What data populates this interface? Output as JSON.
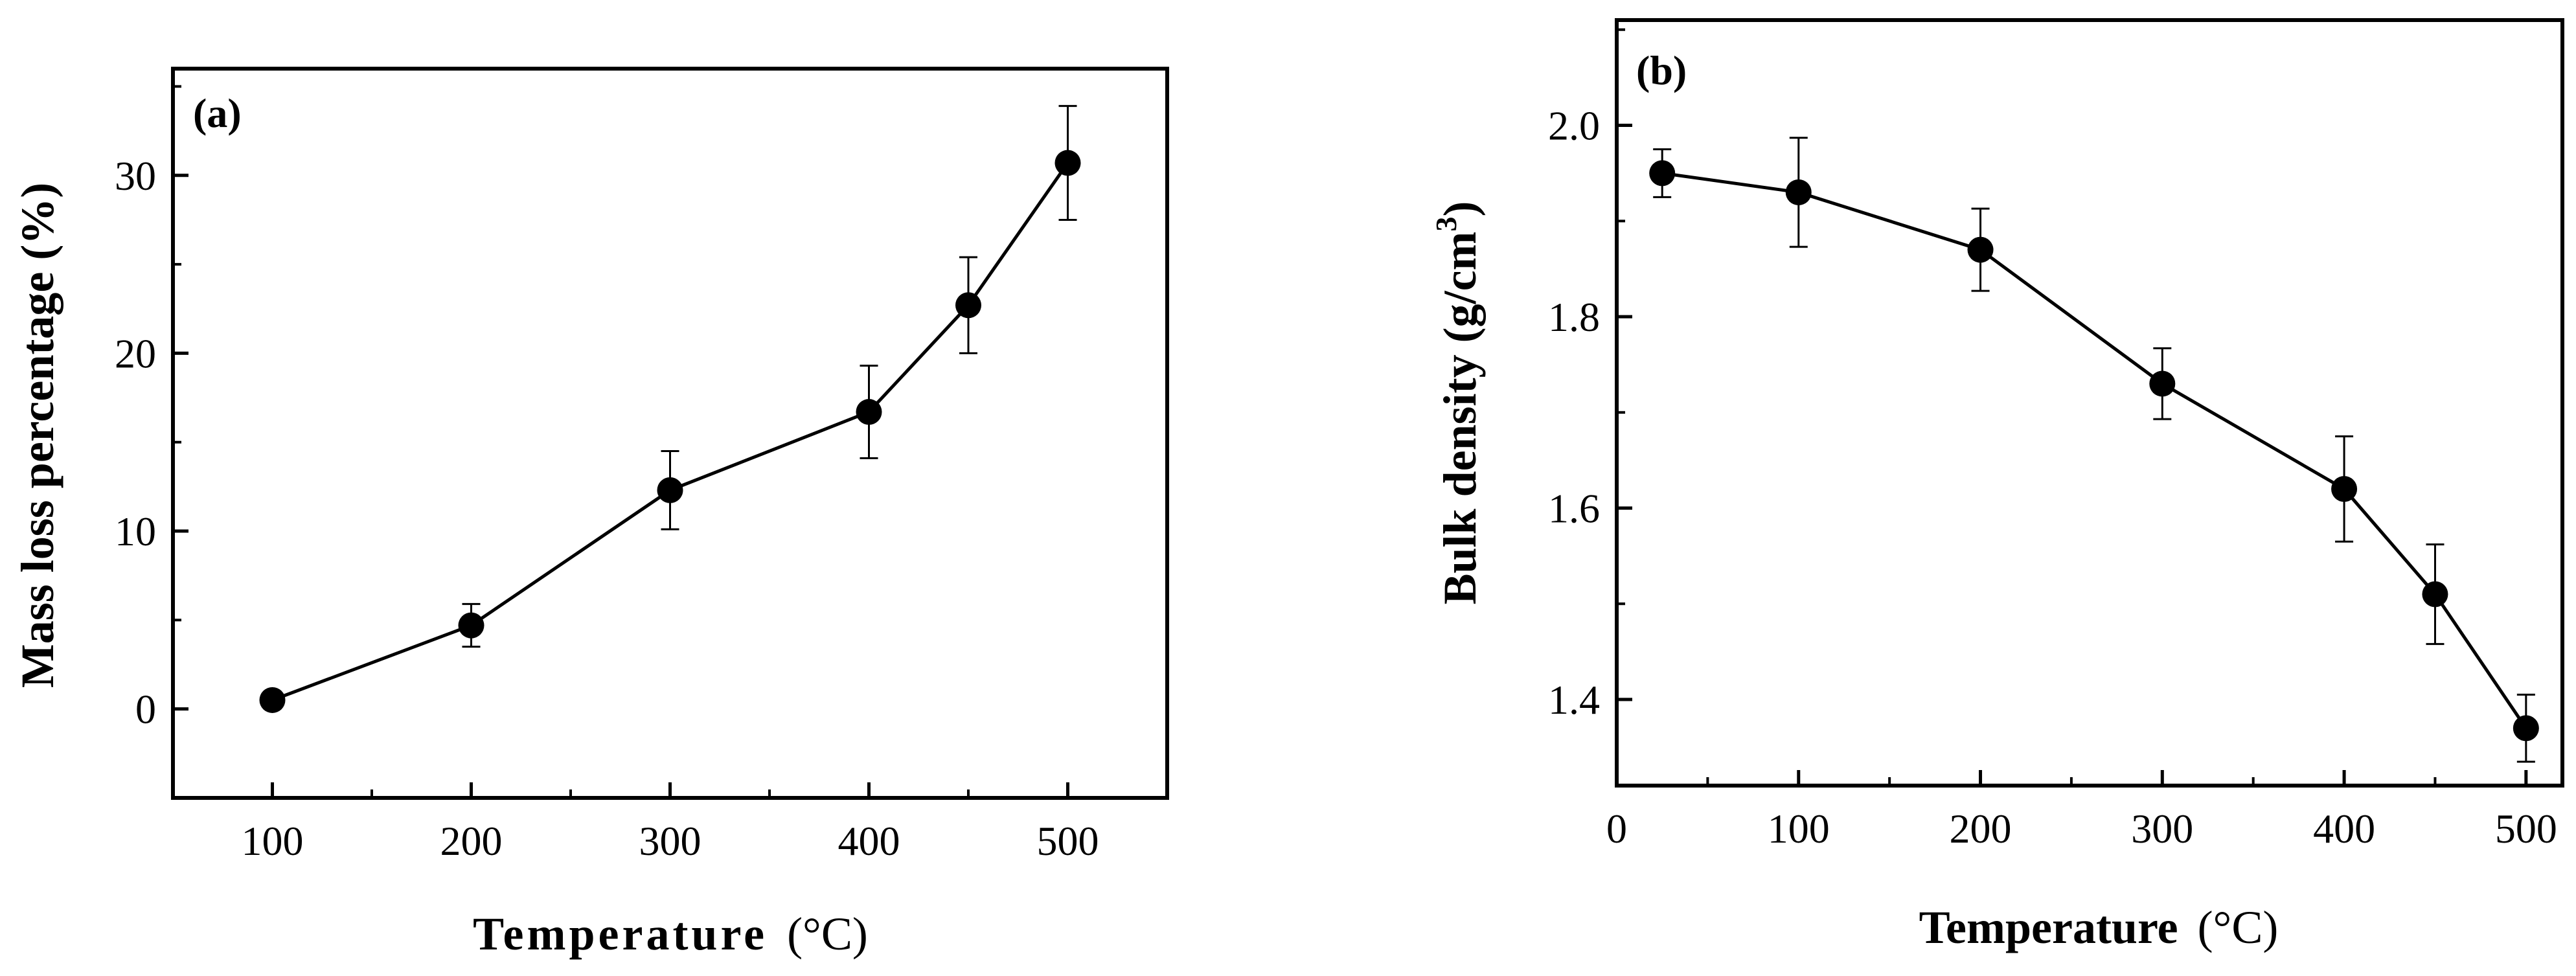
{
  "chart_data": [
    {
      "type": "line",
      "panel_label": "(a)",
      "xlabel": "Temperature",
      "xunit": "(°C)",
      "ylabel": "Mass loss percentage (%)",
      "xlim": [
        50,
        550
      ],
      "ylim": [
        -5,
        36
      ],
      "xticks": [
        100,
        200,
        300,
        400,
        500
      ],
      "xtick_labels": [
        "100",
        "200",
        "300",
        "400",
        "500"
      ],
      "yticks": [
        0,
        10,
        20,
        30
      ],
      "ytick_labels": [
        "0",
        "10",
        "20",
        "30"
      ],
      "grid": false,
      "legend": "none",
      "series": [
        {
          "name": "Mass loss percentage",
          "x": [
            100,
            200,
            300,
            400,
            450,
            500
          ],
          "y": [
            0.5,
            4.7,
            12.3,
            16.7,
            22.7,
            30.7
          ],
          "err": [
            0.4,
            1.2,
            2.2,
            2.6,
            2.7,
            3.2
          ]
        }
      ]
    },
    {
      "type": "line",
      "panel_label": "(b)",
      "xlabel": "Temperature",
      "xunit": "(°C)",
      "ylabel": "Bulk density (g/cm",
      "ylabel_superscript": "3",
      "ylabel_suffix": ")",
      "xlim": [
        0,
        520
      ],
      "ylim": [
        1.31,
        2.11
      ],
      "xticks": [
        0,
        100,
        200,
        300,
        400,
        500
      ],
      "xtick_labels": [
        "0",
        "100",
        "200",
        "300",
        "400",
        "500"
      ],
      "yticks": [
        1.4,
        1.6,
        1.8,
        2.0
      ],
      "ytick_labels": [
        "1.4",
        "1.6",
        "1.8",
        "2.0"
      ],
      "grid": false,
      "legend": "none",
      "series": [
        {
          "name": "Bulk density",
          "x": [
            25,
            100,
            200,
            300,
            400,
            450,
            500
          ],
          "y": [
            1.95,
            1.93,
            1.87,
            1.73,
            1.62,
            1.51,
            1.37
          ],
          "err": [
            0.025,
            0.057,
            0.043,
            0.037,
            0.055,
            0.052,
            0.035
          ]
        }
      ]
    }
  ]
}
